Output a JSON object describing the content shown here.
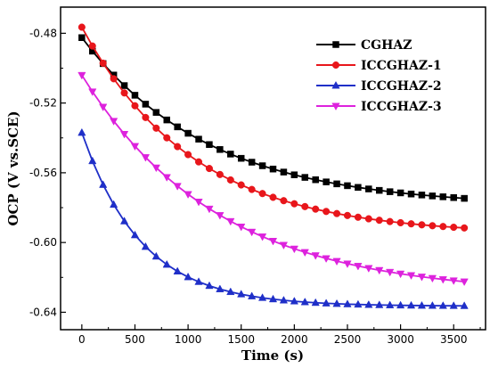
{
  "chart_data": {
    "type": "line",
    "title": "",
    "xlabel": "Time (s)",
    "ylabel": "OCP (V vs.SCE)",
    "xlim": [
      -200,
      3800
    ],
    "ylim": [
      -0.65,
      -0.465
    ],
    "x_ticks": [
      0,
      500,
      1000,
      1500,
      2000,
      2500,
      3000,
      3500
    ],
    "y_ticks": [
      -0.48,
      -0.52,
      -0.56,
      -0.6,
      -0.64
    ],
    "y_tick_labels": [
      "-0.48",
      "-0.52",
      "-0.56",
      "-0.60",
      "-0.64"
    ],
    "grid": false,
    "legend_position": "top-right",
    "marker_interval_s": 100,
    "series": [
      {
        "name": "CGHAZ",
        "color": "#000000",
        "marker": "square",
        "start": -0.4825,
        "end": -0.5795,
        "tau": 1200
      },
      {
        "name": "ICCGHAZ-1",
        "color": "#e8161b",
        "marker": "circle",
        "start": -0.4765,
        "end": -0.5955,
        "tau": 1050
      },
      {
        "name": "ICCGHAZ-2",
        "color": "#1f2fc8",
        "marker": "triangle-up",
        "start": -0.537,
        "end": -0.6365,
        "tau": 560
      },
      {
        "name": "ICCGHAZ-3",
        "color": "#dd22dd",
        "marker": "triangle-down",
        "start": -0.504,
        "end": -0.63,
        "tau": 1280
      }
    ]
  }
}
